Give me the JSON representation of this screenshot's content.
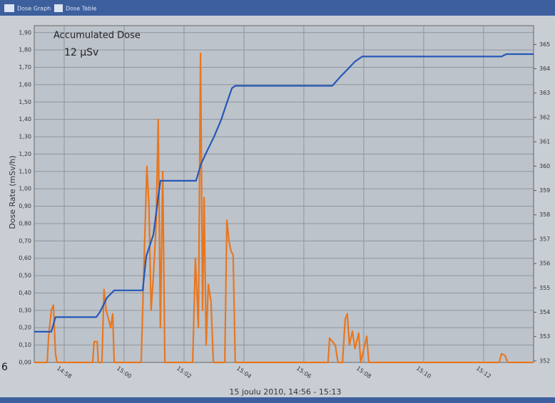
{
  "tabs": [
    "Dose Graph",
    "Dose Table"
  ],
  "side_text": "6",
  "chart_data": {
    "type": "line",
    "annotations": [
      "Accumulated Dose",
      "12 µSv"
    ],
    "y_label": "Dose Rate (mSv/h)",
    "x_label": "15 joulu 2010, 14:56 - 15:13",
    "xlim": [
      897,
      913.67
    ],
    "xticks": [
      {
        "value": 898,
        "label": "14:58"
      },
      {
        "value": 900,
        "label": "15:00"
      },
      {
        "value": 902,
        "label": "15:02"
      },
      {
        "value": 904,
        "label": "15:04"
      },
      {
        "value": 906,
        "label": "15:06"
      },
      {
        "value": 908,
        "label": "15:08"
      },
      {
        "value": 910,
        "label": "15:10"
      },
      {
        "value": 912,
        "label": "15:12"
      }
    ],
    "ylim": [
      0,
      1.94
    ],
    "yticks": [
      {
        "value": 0,
        "label": "0,00"
      },
      {
        "value": 0.1,
        "label": "0,10"
      },
      {
        "value": 0.2,
        "label": "0,20"
      },
      {
        "value": 0.3,
        "label": "0,30"
      },
      {
        "value": 0.4,
        "label": "0,40"
      },
      {
        "value": 0.5,
        "label": "0,50"
      },
      {
        "value": 0.6,
        "label": "0,60"
      },
      {
        "value": 0.7,
        "label": "0,70"
      },
      {
        "value": 0.8,
        "label": "0,80"
      },
      {
        "value": 0.9,
        "label": "0,90"
      },
      {
        "value": 1.0,
        "label": "1,00"
      },
      {
        "value": 1.1,
        "label": "1,10"
      },
      {
        "value": 1.2,
        "label": "1,20"
      },
      {
        "value": 1.3,
        "label": "1,30"
      },
      {
        "value": 1.4,
        "label": "1,40"
      },
      {
        "value": 1.5,
        "label": "1,50"
      },
      {
        "value": 1.6,
        "label": "1,60"
      },
      {
        "value": 1.7,
        "label": "1,70"
      },
      {
        "value": 1.8,
        "label": "1,80"
      },
      {
        "value": 1.9,
        "label": "1,90"
      }
    ],
    "y2lim": [
      351.94,
      365.77
    ],
    "y2ticks": [
      352,
      353,
      354,
      355,
      356,
      357,
      358,
      359,
      360,
      361,
      362,
      363,
      364,
      365
    ],
    "grid": true,
    "series": [
      {
        "color": "#e8771f",
        "x": [
          897.0,
          897.43,
          897.48,
          897.57,
          897.64,
          897.71,
          897.76,
          898.95,
          899.0,
          899.1,
          899.14,
          899.26,
          899.33,
          899.4,
          899.48,
          899.55,
          899.62,
          899.67,
          900.57,
          900.67,
          900.76,
          900.83,
          900.9,
          900.98,
          901.07,
          901.14,
          901.21,
          901.29,
          901.36,
          902.29,
          902.38,
          902.48,
          902.55,
          902.62,
          902.67,
          902.74,
          902.81,
          902.9,
          902.98,
          903.36,
          903.43,
          903.5,
          903.57,
          903.64,
          903.71,
          906.81,
          906.86,
          906.95,
          907.05,
          907.14,
          907.29,
          907.38,
          907.45,
          907.52,
          907.62,
          907.71,
          907.83,
          907.9,
          908.1,
          908.17,
          912.52,
          912.6,
          912.71,
          912.81,
          913.67
        ],
        "values": [
          0,
          0,
          0.15,
          0.3,
          0.33,
          0.05,
          0,
          0,
          0.12,
          0.12,
          0,
          0,
          0.42,
          0.3,
          0.25,
          0.2,
          0.28,
          0,
          0,
          0.6,
          1.13,
          0.9,
          0.3,
          0.5,
          0.8,
          1.4,
          0.2,
          1.1,
          0,
          0,
          0.6,
          0.2,
          1.78,
          0.3,
          0.95,
          0.1,
          0.45,
          0.35,
          0,
          0,
          0.82,
          0.7,
          0.64,
          0.62,
          0,
          0,
          0.14,
          0.12,
          0.1,
          0,
          0,
          0.25,
          0.28,
          0.1,
          0.18,
          0.08,
          0.17,
          0,
          0.15,
          0,
          0,
          0.05,
          0.04,
          0,
          0
        ]
      },
      {
        "color": "#2458b8",
        "axis": "y2",
        "x": [
          897.0,
          897.57,
          897.71,
          899.07,
          899.19,
          899.43,
          899.67,
          900.62,
          900.74,
          900.98,
          901.21,
          902.4,
          902.57,
          902.76,
          903.0,
          903.24,
          903.43,
          903.6,
          903.71,
          906.95,
          907.24,
          907.48,
          907.71,
          907.95,
          908.19,
          912.6,
          912.76,
          913.67
        ],
        "values": [
          353.2,
          353.2,
          353.8,
          353.8,
          354.0,
          354.6,
          354.9,
          354.9,
          356.3,
          357.2,
          359.4,
          359.4,
          360.1,
          360.6,
          361.2,
          361.9,
          362.6,
          363.2,
          363.3,
          363.3,
          363.7,
          364.0,
          364.3,
          364.5,
          364.5,
          364.5,
          364.6,
          364.6
        ]
      }
    ]
  }
}
